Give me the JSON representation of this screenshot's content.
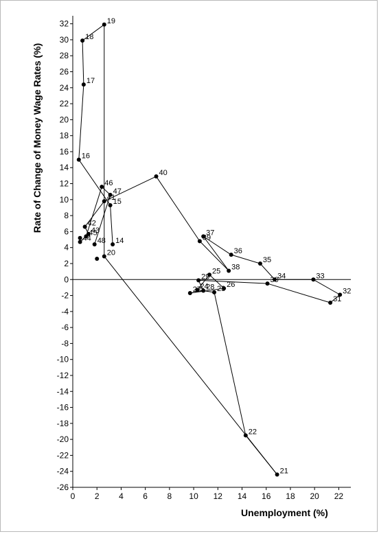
{
  "chart_data": {
    "type": "scatter",
    "title": "",
    "xlabel": "Unemployment (%)",
    "ylabel": "Rate of Change of Money Wage Rates (%)",
    "xlim": [
      0,
      23
    ],
    "ylim": [
      -26,
      33
    ],
    "x_ticks": [
      0,
      2,
      4,
      6,
      8,
      10,
      12,
      14,
      16,
      18,
      20,
      22
    ],
    "y_ticks": [
      32,
      30,
      28,
      26,
      24,
      22,
      20,
      18,
      16,
      14,
      12,
      10,
      8,
      6,
      4,
      2,
      0,
      -2,
      -4,
      -6,
      -8,
      -10,
      -12,
      -14,
      -16,
      -18,
      -20,
      -22,
      -24,
      -26
    ],
    "grid": false,
    "connected": true,
    "series": [
      {
        "points": [
          {
            "label": "14",
            "x": 3.3,
            "y": 4.4
          },
          {
            "label": "15",
            "x": 3.1,
            "y": 9.3
          },
          {
            "label": "16",
            "x": 0.5,
            "y": 15.0
          },
          {
            "label": "17",
            "x": 0.9,
            "y": 24.4
          },
          {
            "label": "18",
            "x": 0.8,
            "y": 29.9
          },
          {
            "label": "19",
            "x": 2.6,
            "y": 31.9
          },
          {
            "label": "20",
            "x": 2.6,
            "y": 2.9
          },
          {
            "label": "21",
            "x": 16.9,
            "y": -24.4
          },
          {
            "label": "22",
            "x": 14.3,
            "y": -19.5
          },
          {
            "label": "23",
            "x": 11.7,
            "y": -1.6
          },
          {
            "label": "24",
            "x": 10.3,
            "y": -1.3
          },
          {
            "label": "25",
            "x": 11.3,
            "y": 0.6
          },
          {
            "label": "26",
            "x": 12.5,
            "y": -1.1
          },
          {
            "label": "27",
            "x": 9.7,
            "y": -1.7
          },
          {
            "label": "28",
            "x": 10.8,
            "y": -1.4
          },
          {
            "label": "29",
            "x": 10.4,
            "y": -0.1
          },
          {
            "label": "30",
            "x": 16.1,
            "y": -0.5
          },
          {
            "label": "31",
            "x": 21.3,
            "y": -2.9
          },
          {
            "label": "32",
            "x": 22.1,
            "y": -1.9
          },
          {
            "label": "33",
            "x": 19.9,
            "y": 0.0
          },
          {
            "label": "34",
            "x": 16.7,
            "y": 0.0
          },
          {
            "label": "35",
            "x": 15.5,
            "y": 2.0
          },
          {
            "label": "36",
            "x": 13.1,
            "y": 3.1
          },
          {
            "label": "37",
            "x": 10.8,
            "y": 5.4
          },
          {
            "label": "38",
            "x": 12.9,
            "y": 1.1
          },
          {
            "label": "39",
            "x": 10.5,
            "y": 4.8
          },
          {
            "label": "40",
            "x": 6.9,
            "y": 12.9
          },
          {
            "label": "41",
            "x": 2.6,
            "y": 9.8
          },
          {
            "label": "42",
            "x": 1.0,
            "y": 6.6
          },
          {
            "label": "43",
            "x": 1.3,
            "y": 5.7
          },
          {
            "label": "44",
            "x": 0.6,
            "y": 4.7
          },
          {
            "label": "45",
            "x": 1.1,
            "y": 5.4
          },
          {
            "label": "46",
            "x": 2.4,
            "y": 11.6
          },
          {
            "label": "47",
            "x": 3.1,
            "y": 10.6
          },
          {
            "label": "48",
            "x": 1.8,
            "y": 4.4
          }
        ]
      }
    ],
    "extra_points": [
      {
        "label": "",
        "x": 2.0,
        "y": 2.6
      },
      {
        "label": "",
        "x": 0.6,
        "y": 5.2
      }
    ]
  }
}
